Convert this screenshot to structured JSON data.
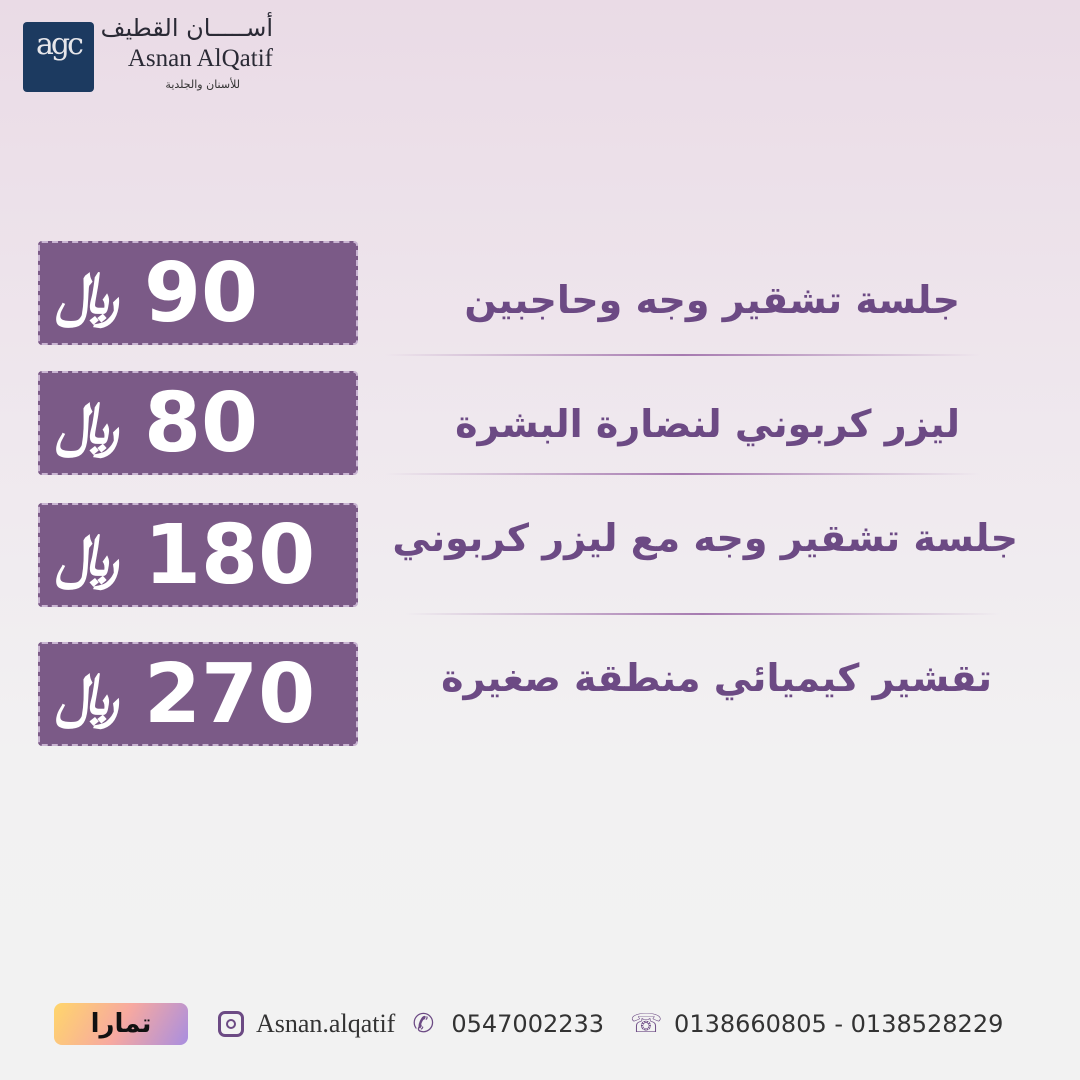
{
  "logo": {
    "mark": "agc",
    "name_ar": "أســـــان القطيف",
    "name_en": "Asnan AlQatif",
    "subtitle": "للأسنان والجلدية"
  },
  "currency_symbol": "﷼",
  "services": [
    {
      "name": "جلسة تشقير وجه وحاجبين",
      "price": "90"
    },
    {
      "name": "ليزر كربوني لنضارة البشرة",
      "price": "80"
    },
    {
      "name": "جلسة تشقير وجه مع ليزر كربوني",
      "price": "180"
    },
    {
      "name": "تقشير كيميائي منطقة صغيرة",
      "price": "270"
    }
  ],
  "footer": {
    "badge": "تمارا",
    "instagram": "Asnan.alqatif",
    "whatsapp": "0547002233",
    "phones": "0138660805 - 0138528229"
  },
  "colors": {
    "accent": "#7b5a87",
    "text": "#6c4a84",
    "logo_bg": "#1c3a60"
  }
}
